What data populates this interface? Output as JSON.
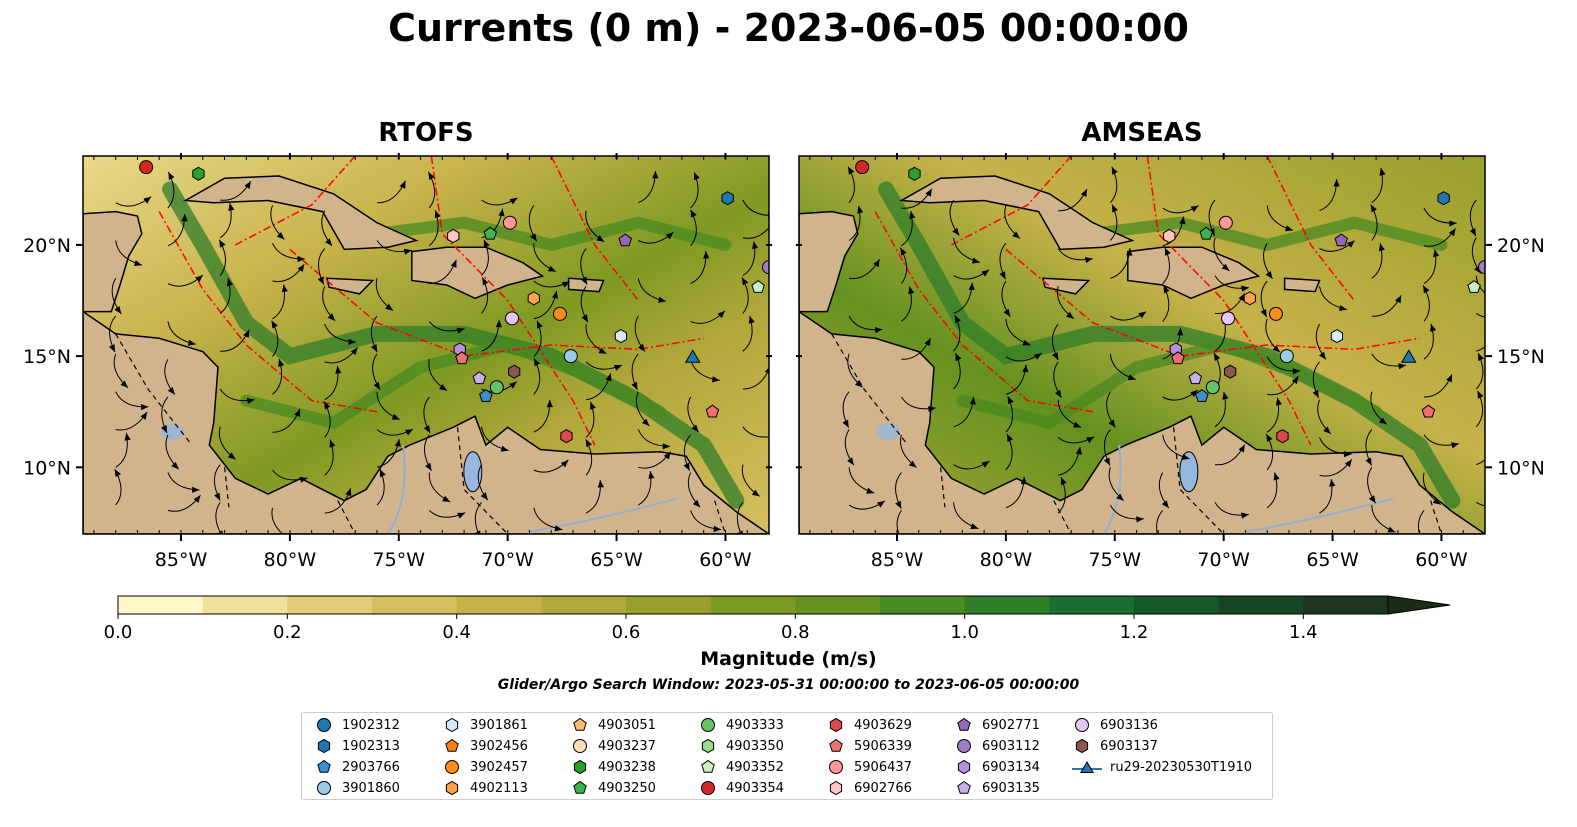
{
  "title": "Currents (0 m) - 2023-06-05 00:00:00",
  "colors": {
    "land": "#d2b48c",
    "water_outside": "#95b7e0",
    "eez_line": "#ff0000",
    "streamline": "#000000"
  },
  "chart_data": [
    {
      "type": "heatmap",
      "panel": "RTOFS",
      "title": "RTOFS",
      "x_ticks": [
        "85°W",
        "80°W",
        "75°W",
        "70°W",
        "65°W",
        "60°W"
      ],
      "y_ticks": [
        "20°N",
        "15°N",
        "10°N"
      ],
      "xlim": [
        -89.5,
        -58.0
      ],
      "ylim": [
        7.0,
        24.0
      ],
      "variable": "current magnitude with streamlines",
      "bathymetry_contour": "-1000"
    },
    {
      "type": "heatmap",
      "panel": "AMSEAS",
      "title": "AMSEAS",
      "x_ticks": [
        "85°W",
        "80°W",
        "75°W",
        "70°W",
        "65°W",
        "60°W"
      ],
      "y_ticks": [
        "20°N",
        "15°N",
        "10°N"
      ],
      "xlim": [
        -89.5,
        -58.0
      ],
      "ylim": [
        7.0,
        24.0
      ],
      "variable": "current magnitude with streamlines",
      "bathymetry_contour": "-1000"
    }
  ],
  "colorbar": {
    "label": "Magnitude (m/s)",
    "ticks": [
      "0.0",
      "0.2",
      "0.4",
      "0.6",
      "0.8",
      "1.0",
      "1.2",
      "1.4"
    ],
    "min": 0.0,
    "max": 1.5,
    "step": 0.1,
    "extend": "max",
    "colors": [
      "#fff8c8",
      "#efe09a",
      "#e2cc78",
      "#d6bf5f",
      "#c7b24a",
      "#b1a73a",
      "#98a02b",
      "#7e9a22",
      "#64921f",
      "#4a8a22",
      "#2f7e2a",
      "#1a6e2e",
      "#14592a",
      "#184625",
      "#1c3620"
    ]
  },
  "search_window": "Glider/Argo Search Window: 2023-05-31 00:00:00 to 2023-06-05 00:00:00",
  "legend": [
    {
      "label": "1902312",
      "marker": "circle",
      "color": "#1f77b4"
    },
    {
      "label": "1902313",
      "marker": "hexagon",
      "color": "#1f77b4"
    },
    {
      "label": "2903766",
      "marker": "pentagon",
      "color": "#3b8ed0"
    },
    {
      "label": "3901860",
      "marker": "circle",
      "color": "#9ecae9"
    },
    {
      "label": "3901861",
      "marker": "hexagon",
      "color": "#d6ecfa"
    },
    {
      "label": "3902456",
      "marker": "pentagon",
      "color": "#ff7f0e"
    },
    {
      "label": "3902457",
      "marker": "circle",
      "color": "#ff8c1a"
    },
    {
      "label": "4902113",
      "marker": "hexagon",
      "color": "#ffa24d"
    },
    {
      "label": "4903051",
      "marker": "pentagon",
      "color": "#ffbb78"
    },
    {
      "label": "4903237",
      "marker": "circle",
      "color": "#ffdcb8"
    },
    {
      "label": "4903238",
      "marker": "hexagon",
      "color": "#2ca02c"
    },
    {
      "label": "4903250",
      "marker": "pentagon",
      "color": "#3cb44b"
    },
    {
      "label": "4903333",
      "marker": "circle",
      "color": "#66c466"
    },
    {
      "label": "4903350",
      "marker": "hexagon",
      "color": "#98df8a"
    },
    {
      "label": "4903352",
      "marker": "pentagon",
      "color": "#c8f0c0"
    },
    {
      "label": "4903354",
      "marker": "circle",
      "color": "#d62728"
    },
    {
      "label": "4903629",
      "marker": "hexagon",
      "color": "#e0474b"
    },
    {
      "label": "5906339",
      "marker": "pentagon",
      "color": "#f07070"
    },
    {
      "label": "5906437",
      "marker": "circle",
      "color": "#ff9896"
    },
    {
      "label": "6902766",
      "marker": "hexagon",
      "color": "#ffc6c4"
    },
    {
      "label": "6902771",
      "marker": "pentagon",
      "color": "#9467bd"
    },
    {
      "label": "6903112",
      "marker": "circle",
      "color": "#a07ccc"
    },
    {
      "label": "6903134",
      "marker": "hexagon",
      "color": "#b591dc"
    },
    {
      "label": "6903135",
      "marker": "pentagon",
      "color": "#c5b0e8"
    },
    {
      "label": "6903136",
      "marker": "circle",
      "color": "#e6c6f5"
    },
    {
      "label": "6903137",
      "marker": "hexagon",
      "color": "#8c564b"
    },
    {
      "label": "ru29-20230530T1910",
      "marker": "triangle-line",
      "color": "#1f77b4"
    }
  ],
  "markers_on_map": [
    {
      "id": "4903354",
      "lon": -86.6,
      "lat": 23.5
    },
    {
      "id": "4903238",
      "lon": -84.2,
      "lat": 23.2
    },
    {
      "id": "1902313",
      "lon": -59.9,
      "lat": 22.1
    },
    {
      "id": "4903250",
      "lon": -70.8,
      "lat": 20.5
    },
    {
      "id": "5906437",
      "lon": -69.9,
      "lat": 21.0
    },
    {
      "id": "6902766",
      "lon": -72.5,
      "lat": 20.4
    },
    {
      "id": "6902771",
      "lon": -64.6,
      "lat": 20.2
    },
    {
      "id": "6903112",
      "lon": -58.0,
      "lat": 19.0
    },
    {
      "id": "4903352",
      "lon": -58.5,
      "lat": 18.1
    },
    {
      "id": "4902113",
      "lon": -68.8,
      "lat": 17.6
    },
    {
      "id": "3902457",
      "lon": -67.6,
      "lat": 16.9
    },
    {
      "id": "6903136",
      "lon": -69.8,
      "lat": 16.7
    },
    {
      "id": "3901861",
      "lon": -64.8,
      "lat": 15.9
    },
    {
      "id": "3901860",
      "lon": -67.1,
      "lat": 15.0
    },
    {
      "id": "6903134",
      "lon": -72.2,
      "lat": 15.3
    },
    {
      "id": "5906339",
      "lon": -72.1,
      "lat": 14.9
    },
    {
      "id": "6903137",
      "lon": -69.7,
      "lat": 14.3
    },
    {
      "id": "6903135",
      "lon": -71.3,
      "lat": 14.0
    },
    {
      "id": "4903333",
      "lon": -70.5,
      "lat": 13.6
    },
    {
      "id": "2903766",
      "lon": -71.0,
      "lat": 13.2
    },
    {
      "id": "4903629",
      "lon": -67.3,
      "lat": 11.4
    },
    {
      "id": "5906339",
      "lon": -60.6,
      "lat": 12.5
    },
    {
      "id": "ru29-20230530T1910",
      "lon": -61.5,
      "lat": 14.9
    }
  ]
}
